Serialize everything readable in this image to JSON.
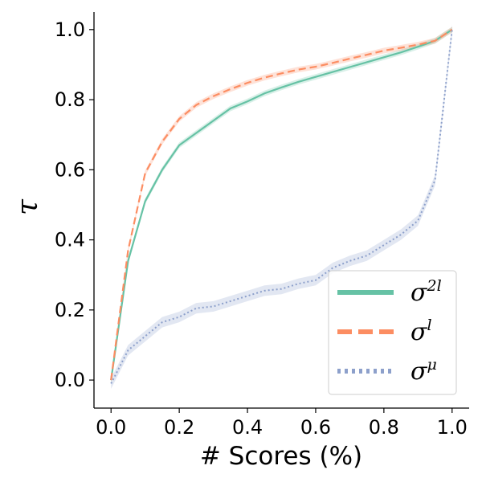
{
  "chart_data": {
    "type": "line",
    "xlabel": "# Scores (%)",
    "ylabel": "τ",
    "xlim": [
      -0.05,
      1.05
    ],
    "ylim": [
      -0.08,
      1.05
    ],
    "xticks": [
      0.0,
      0.2,
      0.4,
      0.6,
      0.8,
      1.0
    ],
    "xtick_labels": [
      "0.0",
      "0.2",
      "0.4",
      "0.6",
      "0.8",
      "1.0"
    ],
    "yticks": [
      0.0,
      0.2,
      0.4,
      0.6,
      0.8,
      1.0
    ],
    "ytick_labels": [
      "0.0",
      "0.2",
      "0.4",
      "0.6",
      "0.8",
      "1.0"
    ],
    "grid": false,
    "legend_position": "lower-right",
    "x": [
      0.0,
      0.05,
      0.1,
      0.15,
      0.2,
      0.25,
      0.3,
      0.35,
      0.4,
      0.45,
      0.5,
      0.55,
      0.6,
      0.65,
      0.7,
      0.75,
      0.8,
      0.85,
      0.9,
      0.95,
      1.0
    ],
    "series": [
      {
        "name": "σ2l",
        "legend_base": "σ",
        "legend_sup": "2l",
        "color": "#66c2a5",
        "style": "solid",
        "values": [
          0.0,
          0.34,
          0.51,
          0.6,
          0.67,
          0.705,
          0.74,
          0.775,
          0.795,
          0.818,
          0.835,
          0.851,
          0.865,
          0.879,
          0.893,
          0.907,
          0.921,
          0.935,
          0.951,
          0.968,
          1.0
        ],
        "band": 0.008
      },
      {
        "name": "σl",
        "legend_base": "σ",
        "legend_sup": "l",
        "color": "#fc8d62",
        "style": "dashed",
        "values": [
          0.0,
          0.37,
          0.59,
          0.68,
          0.745,
          0.785,
          0.81,
          0.83,
          0.848,
          0.863,
          0.875,
          0.886,
          0.894,
          0.905,
          0.917,
          0.928,
          0.94,
          0.948,
          0.957,
          0.968,
          1.0
        ],
        "band": 0.008
      },
      {
        "name": "σμ",
        "legend_base": "σ",
        "legend_sup": "μ",
        "color": "#8da0cb",
        "style": "dotted",
        "values": [
          -0.01,
          0.085,
          0.125,
          0.165,
          0.18,
          0.205,
          0.21,
          0.225,
          0.24,
          0.255,
          0.26,
          0.275,
          0.285,
          0.32,
          0.34,
          0.355,
          0.385,
          0.415,
          0.455,
          0.57,
          1.0
        ],
        "band": 0.015
      }
    ]
  }
}
